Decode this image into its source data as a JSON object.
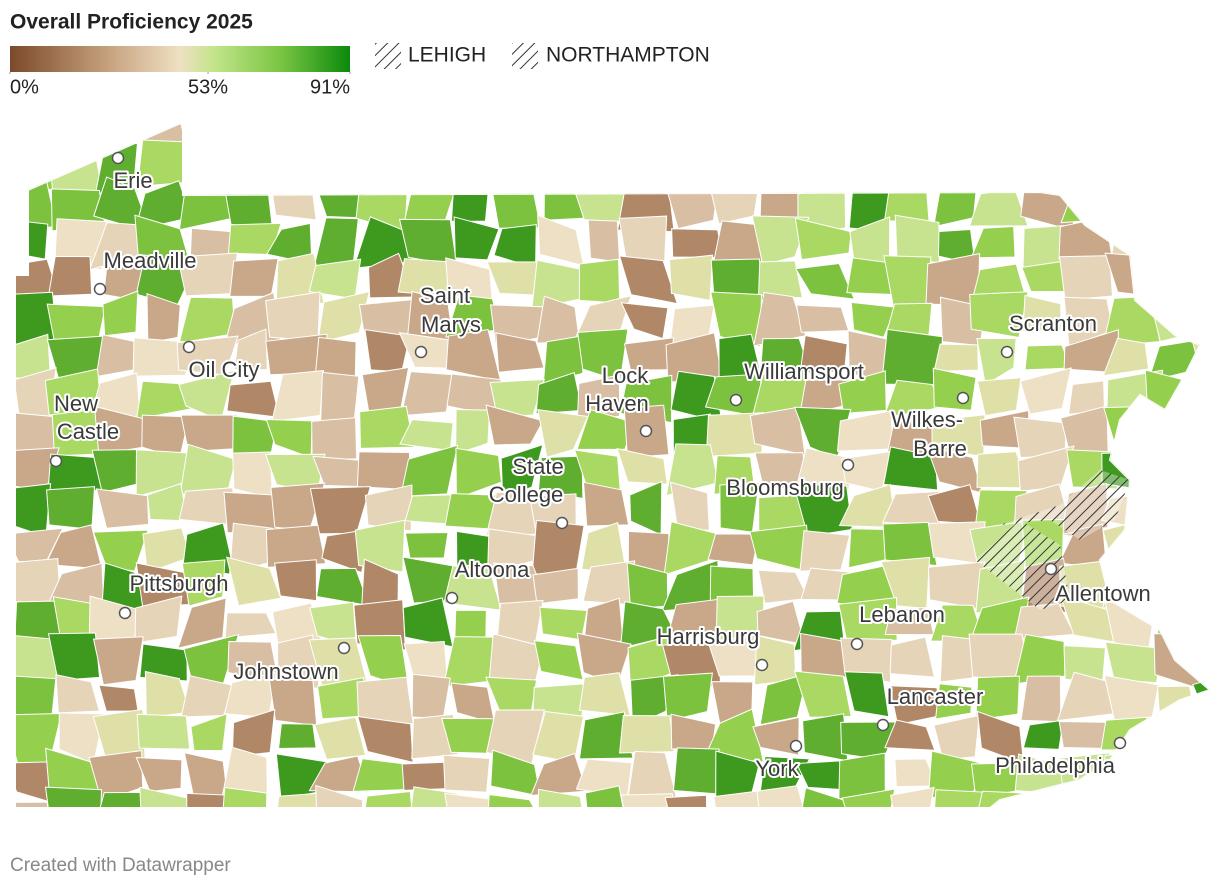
{
  "header": {
    "title": "Overall Proficiency 2025"
  },
  "legend": {
    "scale": {
      "ticks": [
        {
          "value": 0,
          "label": "0%"
        },
        {
          "value": 53,
          "label": "53%"
        },
        {
          "value": 91,
          "label": "91%"
        }
      ]
    },
    "patterns": [
      "LEHIGH",
      "NORTHAMPTON"
    ]
  },
  "cities": [
    {
      "lines": [
        "Erie"
      ]
    },
    {
      "lines": [
        "Meadville"
      ]
    },
    {
      "lines": [
        "Saint",
        "Marys"
      ]
    },
    {
      "lines": [
        "Oil City"
      ]
    },
    {
      "lines": [
        "New",
        "Castle"
      ]
    },
    {
      "lines": [
        "Lock",
        "Haven"
      ]
    },
    {
      "lines": [
        "Williamsport"
      ]
    },
    {
      "lines": [
        "Scranton"
      ]
    },
    {
      "lines": [
        "Wilkes-",
        "Barre"
      ]
    },
    {
      "lines": [
        "State",
        "College"
      ]
    },
    {
      "lines": [
        "Bloomsburg"
      ]
    },
    {
      "lines": [
        "Altoona"
      ]
    },
    {
      "lines": [
        "Pittsburgh"
      ]
    },
    {
      "lines": [
        "Johnstown"
      ]
    },
    {
      "lines": [
        "Harrisburg"
      ]
    },
    {
      "lines": [
        "Lebanon"
      ]
    },
    {
      "lines": [
        "Lancaster"
      ]
    },
    {
      "lines": [
        "York"
      ]
    },
    {
      "lines": [
        "Philadelphia"
      ]
    },
    {
      "lines": [
        "Allentown"
      ]
    }
  ],
  "footer": "Created with Datawrapper"
}
